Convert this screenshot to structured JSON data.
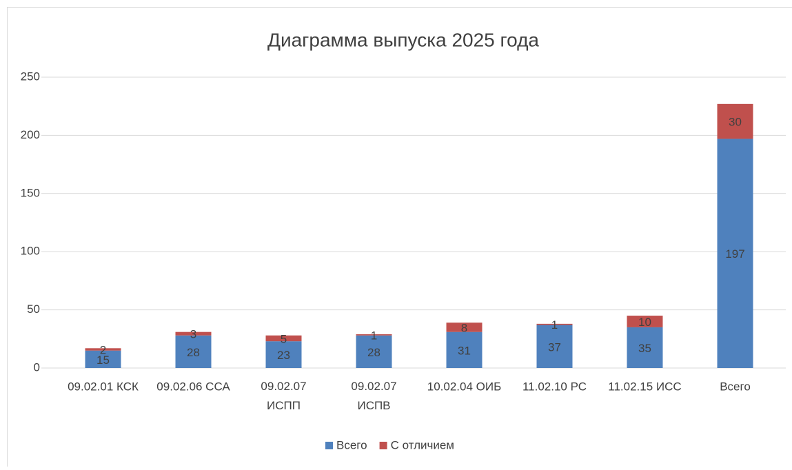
{
  "chart_data": {
    "type": "stacked_bar",
    "title": "Диаграмма выпуска 2025 года",
    "categories": [
      "09.02.01 КСК",
      "09.02.06 ССА",
      "09.02.07 ИСПП",
      "09.02.07 ИСПВ",
      "10.02.04 ОИБ",
      "11.02.10 РС",
      "11.02.15 ИСС",
      "Всего"
    ],
    "series": [
      {
        "name": "Всего",
        "color": "#4f81bd",
        "values": [
          15,
          28,
          23,
          28,
          31,
          37,
          35,
          197
        ]
      },
      {
        "name": "С отличием",
        "color": "#c0504d",
        "values": [
          2,
          3,
          5,
          1,
          8,
          1,
          10,
          30
        ]
      }
    ],
    "ylim": [
      0,
      250
    ],
    "yticks": [
      0,
      50,
      100,
      150,
      200,
      250
    ],
    "grid": true,
    "legend": "bottom"
  }
}
